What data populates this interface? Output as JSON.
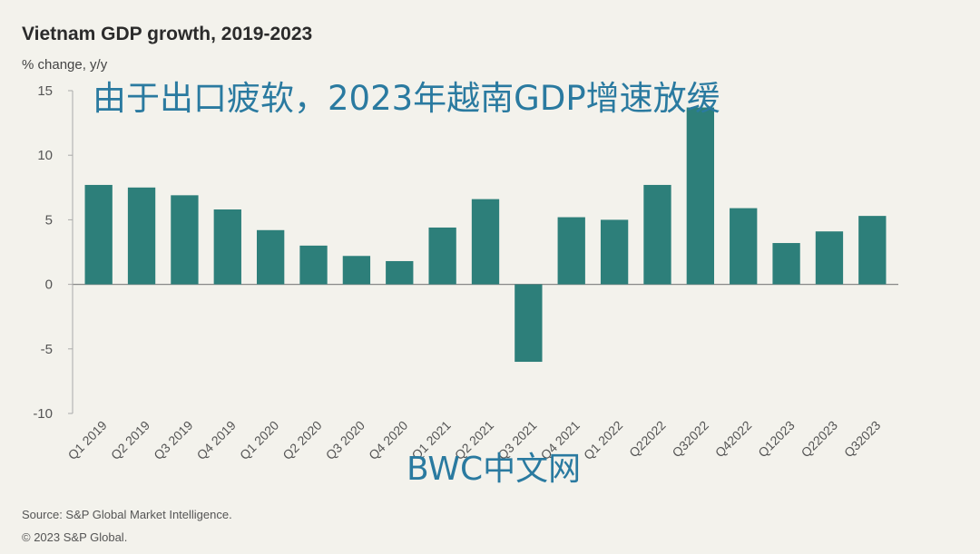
{
  "overlay": {
    "headline": "由于出口疲软，2023年越南GDP增速放缓",
    "watermark": "BWC中文网"
  },
  "footer": {
    "source": "Source: S&P Global Market Intelligence.",
    "copyright": "© 2023 S&P Global."
  },
  "colors": {
    "bar": "#2d7f7a",
    "axis": "#888888",
    "background": "#f3f2ec"
  },
  "chart_data": {
    "type": "bar",
    "title": "Vietnam GDP growth, 2019-2023",
    "ylabel": "% change, y/y",
    "xlabel": "",
    "ylim": [
      -10,
      15
    ],
    "yticks": [
      15,
      10,
      5,
      0,
      -5,
      -10
    ],
    "grid": false,
    "categories": [
      "Q1 2019",
      "Q2 2019",
      "Q3 2019",
      "Q4 2019",
      "Q1 2020",
      "Q2 2020",
      "Q3 2020",
      "Q4 2020",
      "Q1 2021",
      "Q2 2021",
      "Q3 2021",
      "Q4 2021",
      "Q1 2022",
      "Q22022",
      "Q32022",
      "Q42022",
      "Q12023",
      "Q22023",
      "Q32023"
    ],
    "values": [
      7.7,
      7.5,
      6.9,
      5.8,
      4.2,
      3.0,
      2.2,
      1.8,
      4.4,
      6.6,
      -6.0,
      5.2,
      5.0,
      7.7,
      13.7,
      5.9,
      3.2,
      4.1,
      5.3
    ]
  }
}
